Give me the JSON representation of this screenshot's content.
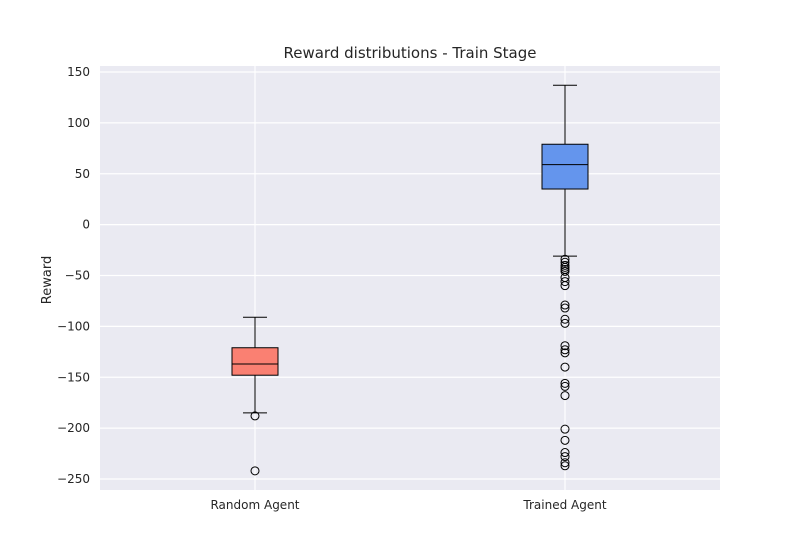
{
  "chart_data": {
    "type": "box",
    "title": "Reward distributions - Train Stage",
    "xlabel": "",
    "ylabel": "Reward",
    "ylim": [
      -260,
      152
    ],
    "y_ticks": [
      150,
      100,
      50,
      0,
      -50,
      -100,
      -150,
      -200,
      -250
    ],
    "y_tick_labels": [
      "150",
      "100",
      "50",
      "0",
      "−50",
      "−100",
      "−150",
      "−200",
      "−250"
    ],
    "grid": true,
    "categories": [
      "Random Agent",
      "Trained Agent"
    ],
    "series": [
      {
        "category": "Random Agent",
        "color": "#fa8072",
        "whisker_low": -185,
        "q1": -148,
        "median": -137,
        "q3": -121,
        "whisker_high": -91,
        "outliers": [
          -188,
          -242
        ]
      },
      {
        "category": "Trained Agent",
        "color": "#6495ed",
        "whisker_low": -31,
        "q1": 35,
        "median": 59,
        "q3": 79,
        "whisker_high": 137,
        "outliers": [
          -34,
          -37,
          -40,
          -42,
          -44,
          -46,
          -52,
          -56,
          -60,
          -79,
          -82,
          -93,
          -97,
          -119,
          -123,
          -126,
          -140,
          -156,
          -159,
          -168,
          -201,
          -212,
          -224,
          -228,
          -234,
          -237
        ]
      }
    ]
  }
}
